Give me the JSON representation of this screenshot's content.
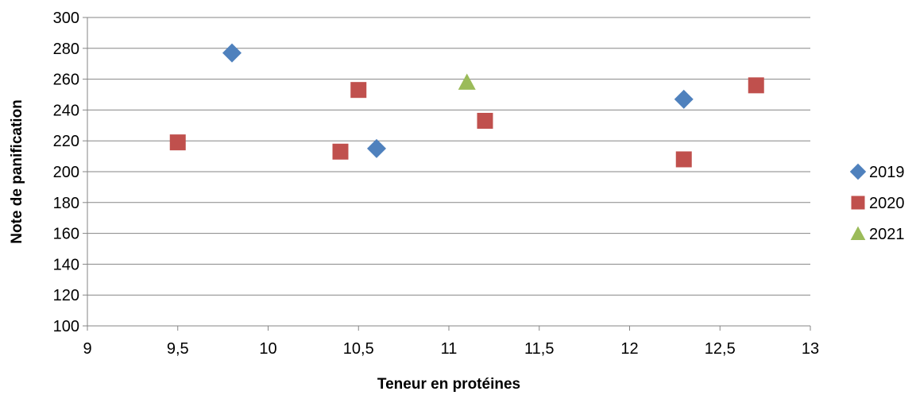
{
  "chart_data": {
    "type": "scatter",
    "title": "",
    "xlabel": "Teneur en protéines",
    "ylabel": "Note de panification",
    "xlim": [
      9,
      13
    ],
    "ylim": [
      100,
      300
    ],
    "x_ticks": [
      9,
      9.5,
      10,
      10.5,
      11,
      11.5,
      12,
      12.5,
      13
    ],
    "x_tick_labels": [
      "9",
      "9,5",
      "10",
      "10,5",
      "11",
      "11,5",
      "12",
      "12,5",
      "13"
    ],
    "y_ticks": [
      100,
      120,
      140,
      160,
      180,
      200,
      220,
      240,
      260,
      280,
      300
    ],
    "y_tick_labels": [
      "100",
      "120",
      "140",
      "160",
      "180",
      "200",
      "220",
      "240",
      "260",
      "280",
      "300"
    ],
    "grid": "horizontal",
    "legend_position": "right",
    "series": [
      {
        "name": "2019",
        "marker": "diamond",
        "color": "#4F81BD",
        "points": [
          {
            "x": 9.8,
            "y": 277
          },
          {
            "x": 10.6,
            "y": 215
          },
          {
            "x": 12.3,
            "y": 247
          }
        ]
      },
      {
        "name": "2020",
        "marker": "square",
        "color": "#C0504D",
        "points": [
          {
            "x": 9.5,
            "y": 219
          },
          {
            "x": 10.4,
            "y": 213
          },
          {
            "x": 10.5,
            "y": 253
          },
          {
            "x": 11.2,
            "y": 233
          },
          {
            "x": 12.3,
            "y": 208
          },
          {
            "x": 12.7,
            "y": 256
          }
        ]
      },
      {
        "name": "2021",
        "marker": "triangle",
        "color": "#9BBB59",
        "points": [
          {
            "x": 11.1,
            "y": 258
          }
        ]
      }
    ]
  }
}
